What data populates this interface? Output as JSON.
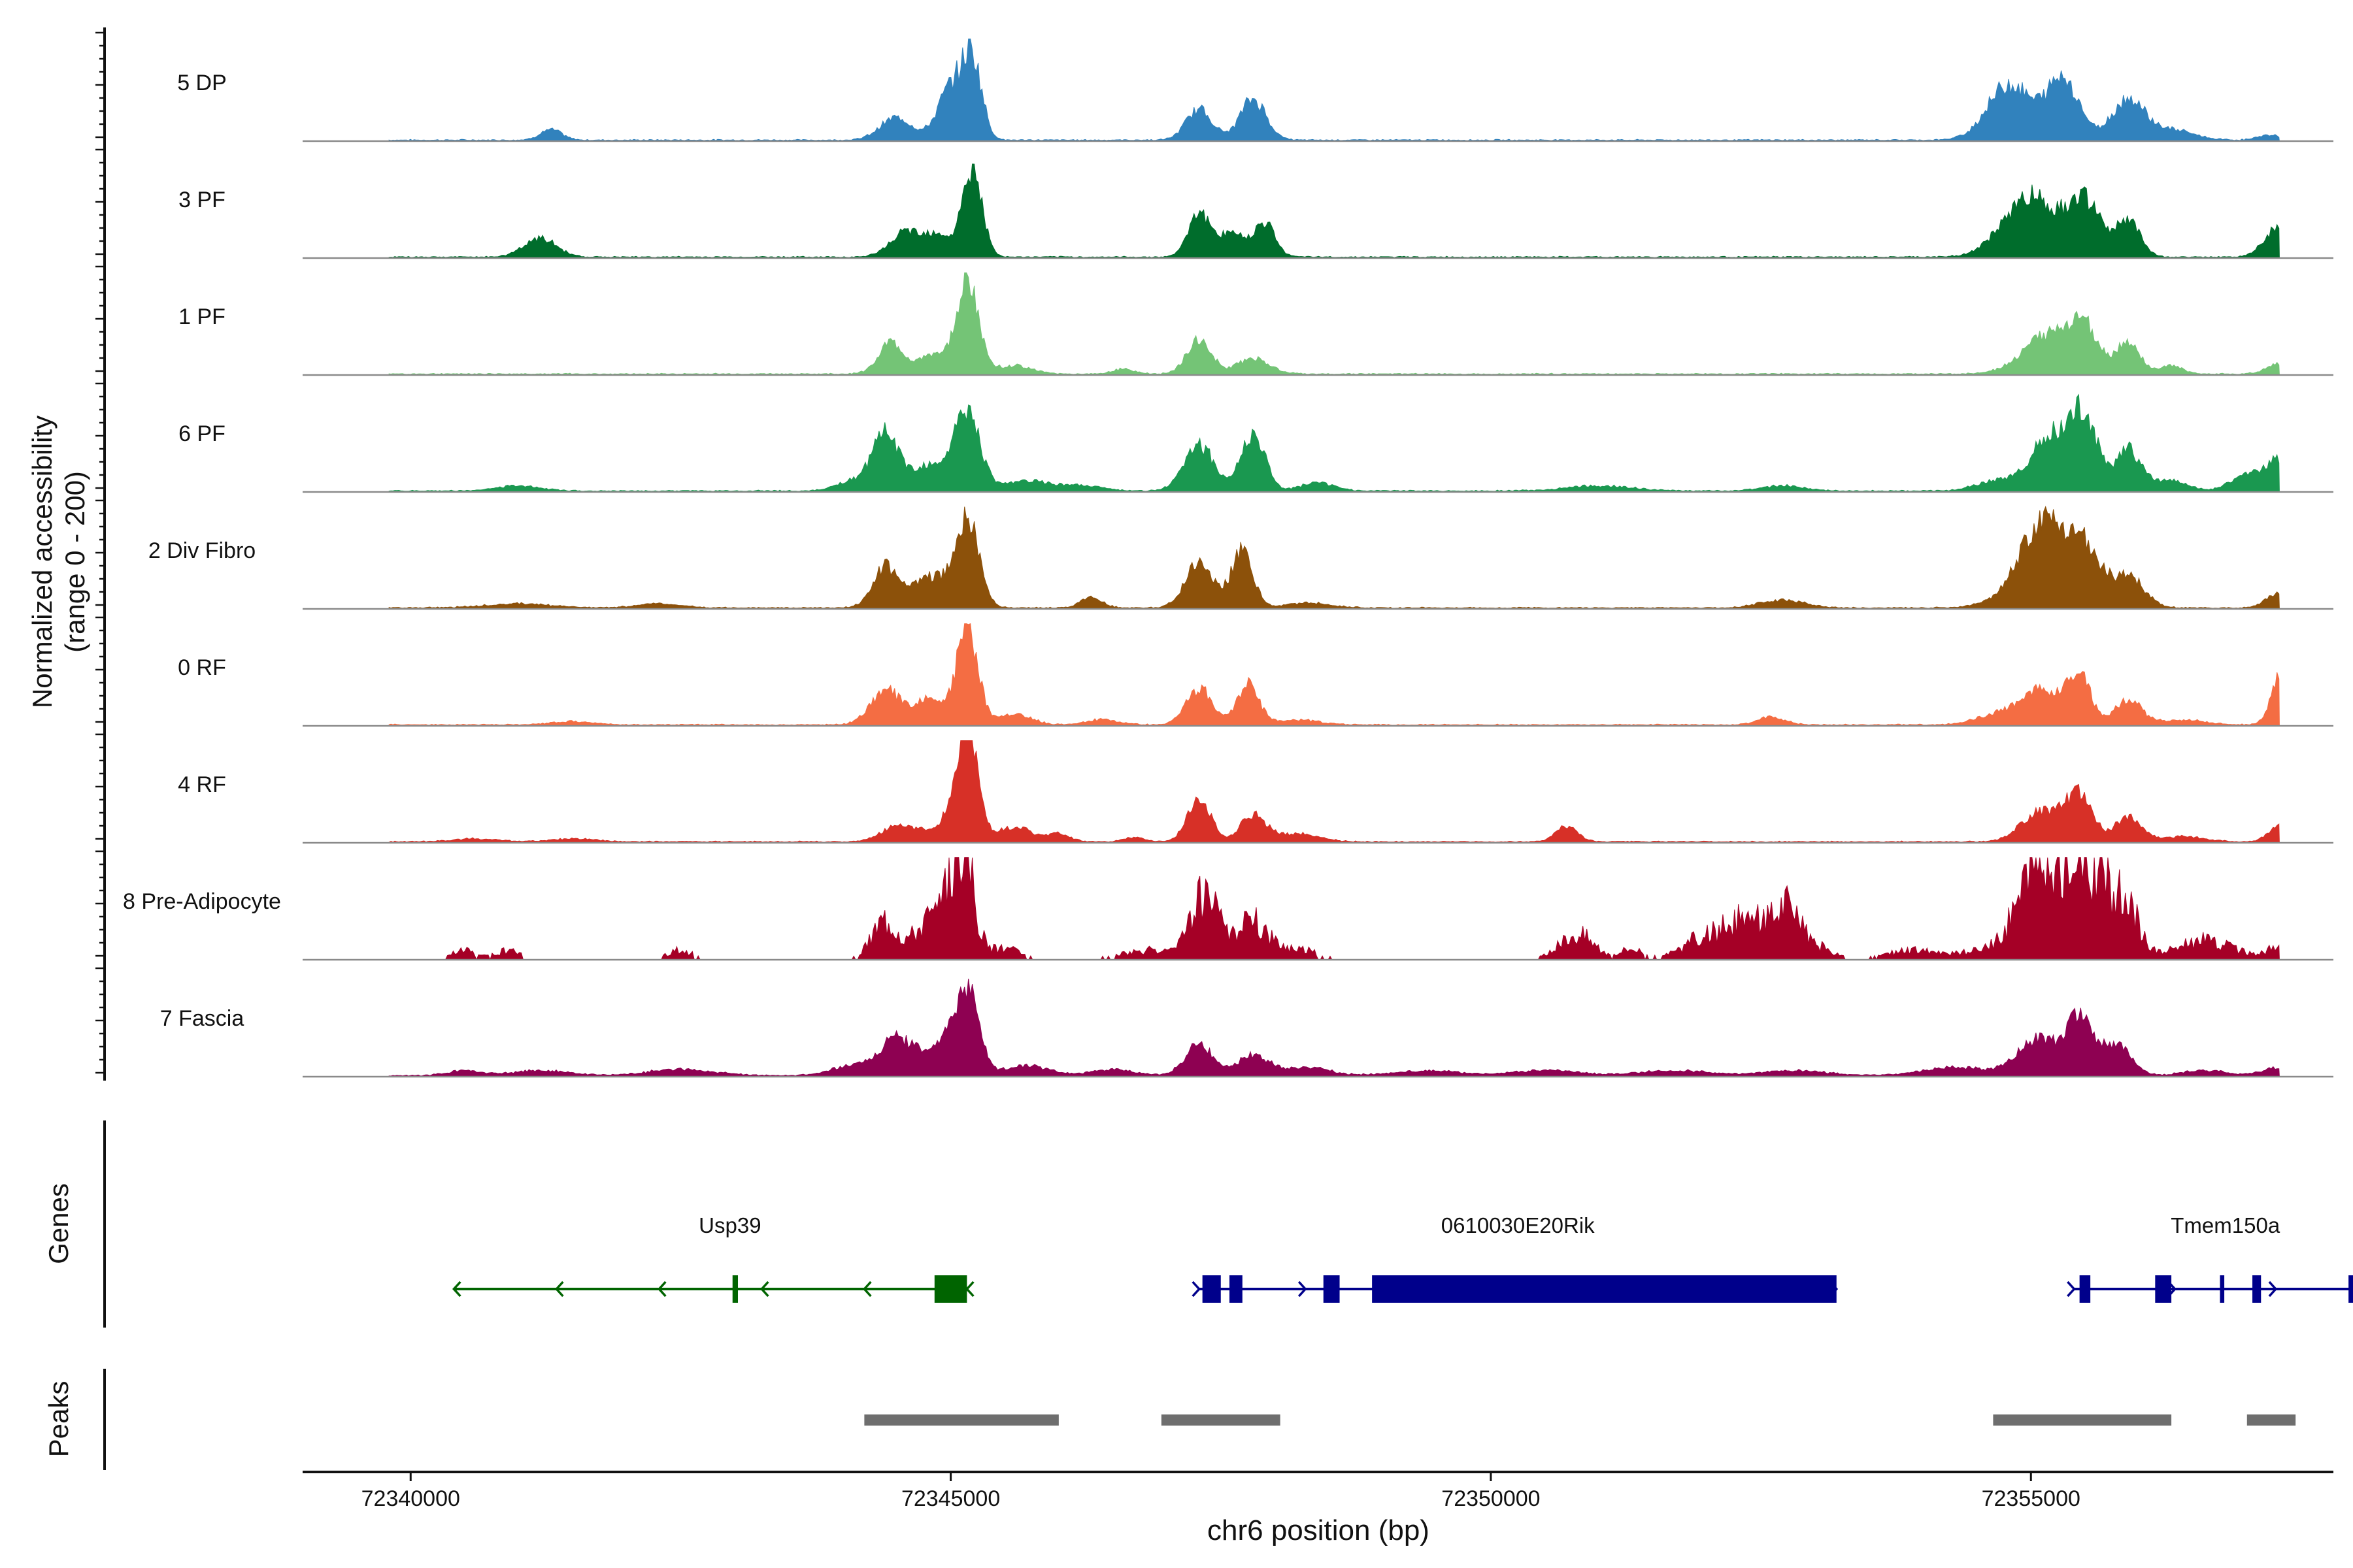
{
  "chart_data": {
    "type": "area",
    "title": "",
    "ylabel_line1": "Normalized accessibility",
    "ylabel_line2": "(range 0 - 200)",
    "xlabel": "chr6 position (bp)",
    "xlim": [
      72339000,
      72357800
    ],
    "xticks": [
      72340000,
      72345000,
      72350000,
      72355000
    ],
    "xtick_labels": [
      "72340000",
      "72345000",
      "72350000",
      "72355000"
    ],
    "tracks": [
      {
        "name": "5 DP",
        "color": "#3182BD",
        "peaks": [
          [
            72341300,
            0.1,
            100
          ],
          [
            72344500,
            0.22,
            150
          ],
          [
            72345000,
            0.5,
            120
          ],
          [
            72345200,
            0.75,
            90
          ],
          [
            72347300,
            0.3,
            120
          ],
          [
            72347800,
            0.4,
            120
          ],
          [
            72354800,
            0.55,
            200
          ],
          [
            72355300,
            0.6,
            150
          ],
          [
            72355900,
            0.4,
            150
          ],
          [
            72356300,
            0.1,
            200
          ],
          [
            72357200,
            0.05,
            100
          ]
        ]
      },
      {
        "name": "3 PF",
        "color": "#006D2C",
        "peaks": [
          [
            72341200,
            0.18,
            150
          ],
          [
            72344600,
            0.25,
            150
          ],
          [
            72345200,
            0.85,
            90
          ],
          [
            72344900,
            0.2,
            120
          ],
          [
            72347300,
            0.45,
            100
          ],
          [
            72347600,
            0.25,
            100
          ],
          [
            72347900,
            0.35,
            100
          ],
          [
            72355000,
            0.6,
            250
          ],
          [
            72355500,
            0.5,
            150
          ],
          [
            72355900,
            0.35,
            110
          ],
          [
            72357300,
            0.3,
            130
          ]
        ]
      },
      {
        "name": "1 PF",
        "color": "#74C476",
        "peaks": [
          [
            72344450,
            0.3,
            120
          ],
          [
            72344800,
            0.18,
            100
          ],
          [
            72345150,
            0.9,
            110
          ],
          [
            72345600,
            0.08,
            150
          ],
          [
            72346600,
            0.05,
            100
          ],
          [
            72347300,
            0.35,
            110
          ],
          [
            72347800,
            0.15,
            150
          ],
          [
            72355200,
            0.4,
            250
          ],
          [
            72355500,
            0.35,
            120
          ],
          [
            72355900,
            0.3,
            110
          ],
          [
            72356300,
            0.08,
            100
          ],
          [
            72357300,
            0.1,
            120
          ]
        ]
      },
      {
        "name": "6 PF",
        "color": "#1A9850",
        "peaks": [
          [
            72341000,
            0.05,
            200
          ],
          [
            72344100,
            0.1,
            150
          ],
          [
            72344400,
            0.55,
            120
          ],
          [
            72344800,
            0.25,
            150
          ],
          [
            72345150,
            0.75,
            120
          ],
          [
            72345700,
            0.1,
            200
          ],
          [
            72346200,
            0.05,
            200
          ],
          [
            72347300,
            0.45,
            140
          ],
          [
            72347800,
            0.55,
            110
          ],
          [
            72348400,
            0.08,
            150
          ],
          [
            72351000,
            0.05,
            300
          ],
          [
            72352700,
            0.05,
            200
          ],
          [
            72354700,
            0.1,
            200
          ],
          [
            72355200,
            0.55,
            180
          ],
          [
            72355500,
            0.65,
            120
          ],
          [
            72355900,
            0.4,
            120
          ],
          [
            72356300,
            0.1,
            150
          ],
          [
            72357000,
            0.15,
            150
          ],
          [
            72357300,
            0.3,
            120
          ]
        ]
      },
      {
        "name": "2 Div Fibro",
        "color": "#8C510A",
        "peaks": [
          [
            72341000,
            0.04,
            300
          ],
          [
            72342300,
            0.04,
            200
          ],
          [
            72344400,
            0.4,
            120
          ],
          [
            72344800,
            0.3,
            150
          ],
          [
            72345150,
            0.9,
            110
          ],
          [
            72346300,
            0.1,
            100
          ],
          [
            72347300,
            0.45,
            130
          ],
          [
            72347700,
            0.55,
            100
          ],
          [
            72348300,
            0.05,
            200
          ],
          [
            72352700,
            0.08,
            200
          ],
          [
            72354700,
            0.05,
            200
          ],
          [
            72355100,
            0.85,
            200
          ],
          [
            72355500,
            0.55,
            150
          ],
          [
            72355900,
            0.3,
            150
          ],
          [
            72357300,
            0.15,
            120
          ]
        ]
      },
      {
        "name": "0 RF",
        "color": "#F46D43",
        "peaks": [
          [
            72341500,
            0.03,
            200
          ],
          [
            72344400,
            0.35,
            140
          ],
          [
            72344800,
            0.25,
            120
          ],
          [
            72345150,
            0.95,
            100
          ],
          [
            72345600,
            0.1,
            150
          ],
          [
            72346400,
            0.05,
            150
          ],
          [
            72347300,
            0.35,
            120
          ],
          [
            72347750,
            0.4,
            100
          ],
          [
            72348200,
            0.05,
            200
          ],
          [
            72352600,
            0.08,
            120
          ],
          [
            72354700,
            0.1,
            200
          ],
          [
            72355100,
            0.35,
            180
          ],
          [
            72355450,
            0.5,
            100
          ],
          [
            72355900,
            0.25,
            120
          ],
          [
            72356400,
            0.05,
            200
          ],
          [
            72357350,
            0.6,
            100
          ]
        ]
      },
      {
        "name": "4 RF",
        "color": "#D73027",
        "peaks": [
          [
            72340600,
            0.03,
            200
          ],
          [
            72341500,
            0.03,
            200
          ],
          [
            72344500,
            0.15,
            150
          ],
          [
            72344900,
            0.15,
            150
          ],
          [
            72345150,
            1.1,
            100
          ],
          [
            72345600,
            0.15,
            150
          ],
          [
            72346000,
            0.08,
            100
          ],
          [
            72346700,
            0.04,
            100
          ],
          [
            72347300,
            0.4,
            110
          ],
          [
            72347800,
            0.25,
            120
          ],
          [
            72348200,
            0.08,
            200
          ],
          [
            72350700,
            0.15,
            100
          ],
          [
            72355100,
            0.3,
            180
          ],
          [
            72355450,
            0.45,
            120
          ],
          [
            72355900,
            0.25,
            120
          ],
          [
            72356400,
            0.05,
            200
          ],
          [
            72357300,
            0.15,
            100
          ]
        ]
      },
      {
        "name": "8 Pre-Adipocyte",
        "color": "#A50026",
        "spiky": true,
        "peaks": [
          [
            72340500,
            0.08,
            100
          ],
          [
            72340900,
            0.08,
            100
          ],
          [
            72342500,
            0.08,
            100
          ],
          [
            72344400,
            0.4,
            120
          ],
          [
            72344800,
            0.4,
            130
          ],
          [
            72345100,
            1.3,
            100
          ],
          [
            72345500,
            0.1,
            150
          ],
          [
            72346800,
            0.08,
            200
          ],
          [
            72347350,
            0.6,
            130
          ],
          [
            72347800,
            0.35,
            150
          ],
          [
            72348200,
            0.1,
            150
          ],
          [
            72350800,
            0.25,
            150
          ],
          [
            72351300,
            0.1,
            100
          ],
          [
            72351900,
            0.15,
            150
          ],
          [
            72352300,
            0.35,
            200
          ],
          [
            72352700,
            0.45,
            150
          ],
          [
            72353000,
            0.1,
            150
          ],
          [
            72353900,
            0.08,
            200
          ],
          [
            72354700,
            0.1,
            300
          ],
          [
            72355000,
            0.7,
            150
          ],
          [
            72355300,
            0.8,
            150
          ],
          [
            72355600,
            0.75,
            150
          ],
          [
            72355900,
            0.45,
            120
          ],
          [
            72356500,
            0.15,
            200
          ],
          [
            72356800,
            0.08,
            200
          ],
          [
            72357300,
            0.1,
            120
          ]
        ]
      },
      {
        "name": "7 Fascia",
        "color": "#8E0152",
        "peaks": [
          [
            72340500,
            0.05,
            150
          ],
          [
            72341200,
            0.05,
            250
          ],
          [
            72342500,
            0.06,
            300
          ],
          [
            72344100,
            0.1,
            200
          ],
          [
            72344500,
            0.35,
            150
          ],
          [
            72344900,
            0.3,
            150
          ],
          [
            72345150,
            0.8,
            110
          ],
          [
            72345700,
            0.1,
            200
          ],
          [
            72346500,
            0.06,
            200
          ],
          [
            72347300,
            0.3,
            130
          ],
          [
            72347800,
            0.2,
            150
          ],
          [
            72348300,
            0.08,
            200
          ],
          [
            72349400,
            0.05,
            300
          ],
          [
            72350500,
            0.05,
            300
          ],
          [
            72351700,
            0.05,
            300
          ],
          [
            72352800,
            0.05,
            300
          ],
          [
            72354300,
            0.08,
            300
          ],
          [
            72355050,
            0.35,
            180
          ],
          [
            72355450,
            0.55,
            130
          ],
          [
            72355800,
            0.3,
            130
          ],
          [
            72356600,
            0.05,
            200
          ],
          [
            72357300,
            0.08,
            150
          ]
        ]
      }
    ],
    "genes": [
      {
        "name": "Usp39",
        "strand": "-",
        "color": "#006400",
        "start": 72340400,
        "end": 72345150,
        "exons": [
          [
            72342980,
            72343030
          ],
          [
            72344850,
            72345150
          ]
        ]
      },
      {
        "name": "0610030E20Rik",
        "strand": "+",
        "color": "#00008B",
        "start": 72347300,
        "end": 72353200,
        "exons": [
          [
            72347330,
            72347500
          ],
          [
            72347580,
            72347700
          ],
          [
            72348450,
            72348600
          ],
          [
            72348900,
            72353200
          ]
        ]
      },
      {
        "name": "Tmem150a",
        "strand": "+",
        "color": "#00008B",
        "start": 72355400,
        "end": 72358200,
        "exons": [
          [
            72355450,
            72355550
          ],
          [
            72356150,
            72356300
          ],
          [
            72356750,
            72356790
          ],
          [
            72357050,
            72357130
          ],
          [
            72357940,
            72357990
          ]
        ]
      }
    ],
    "peaks_track": [
      [
        72344200,
        72346000
      ],
      [
        72346950,
        72348050
      ],
      [
        72354650,
        72356300
      ],
      [
        72357000,
        72357450
      ]
    ],
    "peaks_color": "#6E6E6E",
    "genes_panel_label": "Genes",
    "peaks_panel_label": "Peaks"
  }
}
